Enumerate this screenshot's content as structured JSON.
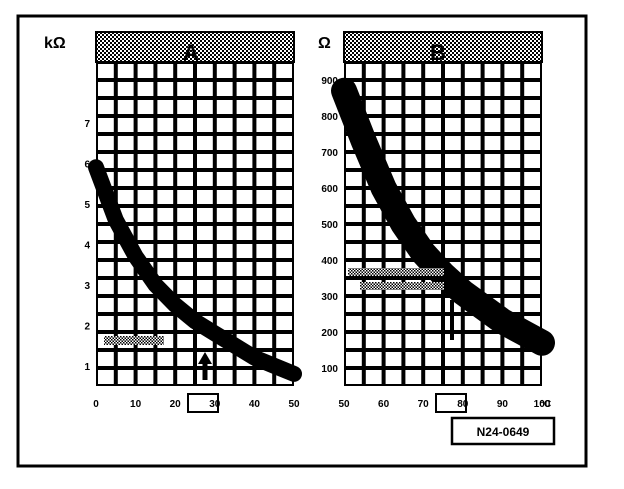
{
  "chart_data": [
    {
      "type": "line",
      "title": "A",
      "ylabel": "kΩ",
      "xlabel": "",
      "x_ticks": [
        "0",
        "10",
        "20",
        "30",
        "40",
        "50"
      ],
      "y_ticks": [
        "1",
        "2",
        "3",
        "4",
        "5",
        "6",
        "7"
      ],
      "xlim": [
        0,
        50
      ],
      "ylim": [
        0.5,
        8.5
      ],
      "grid": true,
      "highlighted_x": "30",
      "series": [
        {
          "x": [
            0,
            5,
            10,
            15,
            20,
            25,
            30,
            35,
            40,
            45,
            50
          ],
          "y": [
            5.9,
            4.6,
            3.7,
            3.0,
            2.5,
            2.1,
            1.8,
            1.5,
            1.2,
            1.0,
            0.8
          ]
        }
      ]
    },
    {
      "type": "line",
      "title": "B",
      "ylabel": "Ω",
      "xlabel": "",
      "x_ticks": [
        "50",
        "60",
        "70",
        "80",
        "90",
        "100"
      ],
      "x_unit": "°C",
      "y_ticks": [
        "100",
        "200",
        "300",
        "400",
        "500",
        "600",
        "700",
        "800",
        "900"
      ],
      "xlim": [
        50,
        100
      ],
      "ylim": [
        50,
        950
      ],
      "grid": true,
      "highlighted_x": "80",
      "series": [
        {
          "x": [
            50,
            55,
            60,
            65,
            70,
            75,
            80,
            85,
            90,
            95,
            100
          ],
          "y": [
            870,
            730,
            600,
            500,
            420,
            360,
            310,
            270,
            230,
            200,
            170
          ]
        }
      ]
    }
  ],
  "figure_ref": "N24-0649"
}
